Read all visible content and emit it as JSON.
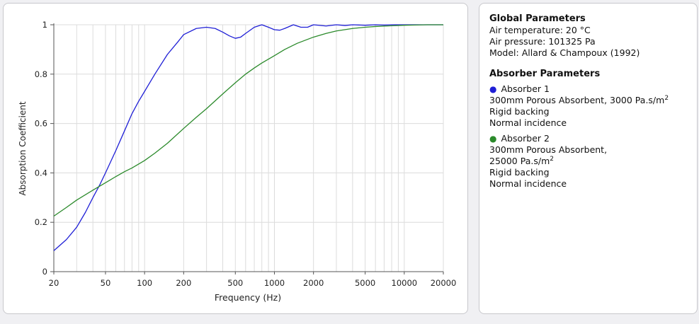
{
  "global": {
    "heading": "Global Parameters",
    "lines": [
      "Air temperature: 20 °C",
      "Air pressure: 101325 Pa",
      "Model: Allard & Champoux (1992)"
    ]
  },
  "absorbers": {
    "heading": "Absorber Parameters",
    "items": [
      {
        "name": "Absorber 1",
        "color": "#1f1fd6",
        "desc1": "300mm Porous Absorbent, 3000 Pa.s/m",
        "sup": "2",
        "desc2": "",
        "backing": "Rigid backing",
        "incidence": "Normal incidence"
      },
      {
        "name": "Absorber 2",
        "color": "#2b8a2b",
        "desc1": "300mm Porous Absorbent,",
        "desc2": "25000 Pa.s/m",
        "sup": "2",
        "backing": "Rigid backing",
        "incidence": "Normal incidence"
      }
    ]
  },
  "chart_data": {
    "type": "line",
    "xscale": "log",
    "xlabel": "Frequency (Hz)",
    "ylabel": "Absorption Coefficient",
    "xlim": [
      20,
      20000
    ],
    "ylim": [
      0,
      1
    ],
    "xticks": [
      20,
      50,
      100,
      200,
      500,
      1000,
      2000,
      5000,
      10000,
      20000
    ],
    "xtick_labels": [
      "20",
      "50",
      "100",
      "200",
      "500",
      "1000",
      "2000",
      "5000",
      "10000",
      "20000"
    ],
    "yticks": [
      0,
      0.2,
      0.4,
      0.6,
      0.8,
      1
    ],
    "ytick_labels": [
      "0",
      "0.2",
      "0.4",
      "0.6",
      "0.8",
      "1"
    ],
    "grid": true,
    "series": [
      {
        "color": "#1f1fd6",
        "x": [
          20,
          25,
          30,
          35,
          40,
          45,
          50,
          60,
          70,
          80,
          90,
          100,
          120,
          150,
          180,
          200,
          250,
          300,
          350,
          400,
          450,
          500,
          550,
          600,
          700,
          800,
          900,
          1000,
          1100,
          1200,
          1400,
          1600,
          1800,
          2000,
          2500,
          3000,
          3500,
          4000,
          5000,
          6000,
          7000,
          8000,
          10000,
          12000,
          15000,
          20000
        ],
        "y": [
          0.085,
          0.13,
          0.18,
          0.24,
          0.3,
          0.35,
          0.4,
          0.49,
          0.57,
          0.64,
          0.69,
          0.73,
          0.8,
          0.88,
          0.93,
          0.96,
          0.985,
          0.99,
          0.985,
          0.97,
          0.955,
          0.945,
          0.95,
          0.965,
          0.99,
          1.0,
          0.99,
          0.98,
          0.978,
          0.985,
          1.0,
          0.99,
          0.99,
          1.0,
          0.995,
          1.0,
          0.997,
          1.0,
          0.998,
          1.0,
          0.999,
          1.0,
          1.0,
          1.0,
          1.0,
          1.0
        ]
      },
      {
        "color": "#2b8a2b",
        "x": [
          20,
          25,
          30,
          40,
          50,
          60,
          70,
          80,
          100,
          120,
          150,
          200,
          250,
          300,
          400,
          500,
          600,
          700,
          800,
          1000,
          1200,
          1500,
          2000,
          2500,
          3000,
          4000,
          5000,
          6000,
          8000,
          10000,
          12000,
          15000,
          20000
        ],
        "y": [
          0.225,
          0.26,
          0.29,
          0.33,
          0.36,
          0.385,
          0.405,
          0.42,
          0.45,
          0.48,
          0.52,
          0.58,
          0.625,
          0.66,
          0.72,
          0.765,
          0.8,
          0.825,
          0.845,
          0.875,
          0.9,
          0.925,
          0.95,
          0.965,
          0.975,
          0.985,
          0.99,
          0.993,
          0.996,
          0.998,
          0.999,
          1.0,
          1.0
        ]
      }
    ]
  }
}
